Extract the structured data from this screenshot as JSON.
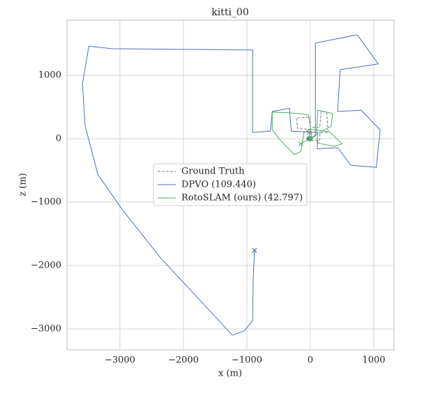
{
  "chart_data": {
    "type": "line",
    "title": "kitti_00",
    "x_label": "x (m)",
    "y_label": "z (m)",
    "xlim": [
      -3835,
      1320
    ],
    "ylim": [
      -3330,
      1870
    ],
    "xticks": [
      {
        "value": -3000,
        "label": "−3000"
      },
      {
        "value": -2000,
        "label": "−2000"
      },
      {
        "value": -1000,
        "label": "−1000"
      },
      0,
      1000
    ],
    "yticks": [
      {
        "value": -3000,
        "label": "−3000"
      },
      {
        "value": -2000,
        "label": "−2000"
      },
      {
        "value": -1000,
        "label": "−1000"
      },
      0,
      1000
    ],
    "grid": true,
    "legend": "center",
    "series": [
      {
        "name": "Ground Truth",
        "color": "#808080",
        "dashed": true,
        "x": [
          0,
          -10,
          -200,
          -220,
          0,
          0,
          150,
          170,
          260,
          280,
          150,
          150,
          -20,
          -20
        ],
        "values": [
          0,
          150,
          160,
          330,
          340,
          180,
          180,
          430,
          420,
          100,
          90,
          -20,
          -30,
          100
        ]
      },
      {
        "name": "DPVO (109.440)",
        "color": "#4c72b0",
        "dashed": false,
        "x": [
          -20,
          80,
          80,
          740,
          1070,
          470,
          430,
          800,
          1100,
          1040,
          640,
          430,
          110,
          110,
          -300,
          -330,
          -600,
          -630,
          -910,
          -910,
          -3130,
          -3490,
          -3590,
          -3550,
          -3350,
          -2970,
          -2360,
          -1700,
          -1230,
          -1040,
          -910,
          -900,
          -880
        ],
        "values": [
          0,
          40,
          1510,
          1640,
          1180,
          1090,
          430,
          450,
          140,
          -450,
          -420,
          -140,
          -160,
          100,
          120,
          480,
          430,
          120,
          100,
          1400,
          1420,
          1460,
          870,
          210,
          -560,
          -1110,
          -1880,
          -2590,
          -3100,
          -3030,
          -2870,
          -2210,
          -1760
        ]
      },
      {
        "name": "RotoSLAM (ours) (42.797)",
        "color": "#55a868",
        "dashed": false,
        "x": [
          0,
          20,
          -30,
          -350,
          -600,
          -600,
          -450,
          -250,
          -150,
          -100,
          0,
          300,
          500,
          380,
          120,
          100,
          120,
          350,
          330,
          150,
          -150
        ],
        "values": [
          0,
          60,
          380,
          410,
          420,
          140,
          -50,
          -250,
          -200,
          100,
          150,
          110,
          -80,
          -120,
          -70,
          150,
          450,
          400,
          200,
          100,
          -80
        ]
      }
    ]
  }
}
